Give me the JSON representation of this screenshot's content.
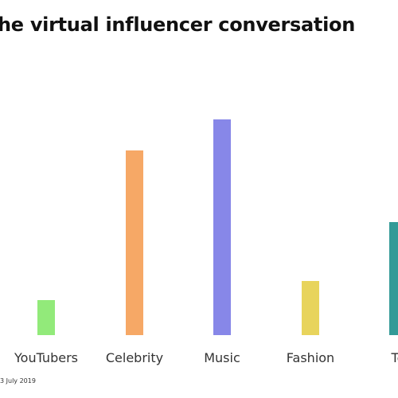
{
  "title": "he virtual influencer conversation",
  "source": "3 July 2019",
  "chart_data": {
    "type": "bar",
    "categories": [
      "YouTubers",
      "Celebrity",
      "Music",
      "Fashion",
      "Te"
    ],
    "values": [
      44,
      232,
      271,
      68,
      142
    ],
    "colors": [
      "#92ea7a",
      "#f6a866",
      "#8787e8",
      "#e8d45c",
      "#339a97"
    ],
    "title": "he virtual influencer conversation",
    "xlabel": "",
    "ylabel": "",
    "ylim": [
      0,
      300
    ],
    "grid": false,
    "legend": "none"
  }
}
